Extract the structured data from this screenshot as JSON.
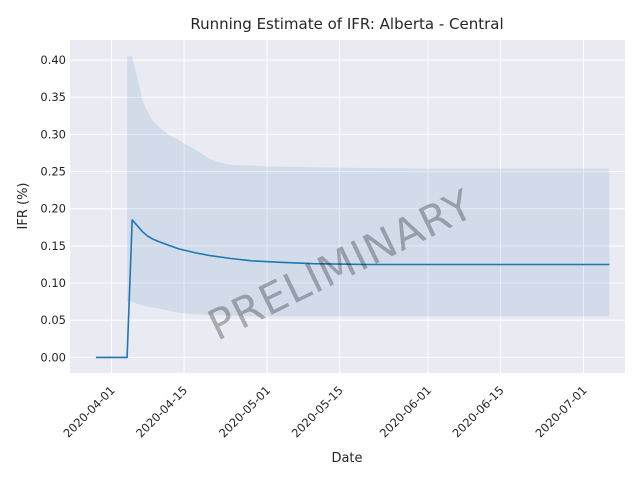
{
  "chart_data": {
    "type": "line",
    "title": "Running Estimate of IFR: Alberta - Central",
    "xlabel": "Date",
    "ylabel": "IFR (%)",
    "x_range": [
      "2020-03-24",
      "2020-07-09"
    ],
    "ylim": [
      -0.021,
      0.427
    ],
    "x_ticks": [
      "2020-04-01",
      "2020-04-15",
      "2020-05-01",
      "2020-05-15",
      "2020-06-01",
      "2020-06-15",
      "2020-07-01"
    ],
    "y_ticks": [
      0.0,
      0.05,
      0.1,
      0.15,
      0.2,
      0.25,
      0.3,
      0.35,
      0.4
    ],
    "y_tick_labels": [
      "0.00",
      "0.05",
      "0.10",
      "0.15",
      "0.20",
      "0.25",
      "0.30",
      "0.35",
      "0.40"
    ],
    "grid": true,
    "background": "#eaeaf2",
    "line_color": "#1f77b4",
    "band_color": "#1f77b4",
    "watermark": "PRELIMINARY",
    "series": [
      {
        "x": [
          "2020-03-29",
          "2020-03-30",
          "2020-03-31",
          "2020-04-01",
          "2020-04-02",
          "2020-04-03",
          "2020-04-04",
          "2020-04-05",
          "2020-04-06",
          "2020-04-07",
          "2020-04-08",
          "2020-04-09",
          "2020-04-10",
          "2020-04-12",
          "2020-04-14",
          "2020-04-17",
          "2020-04-20",
          "2020-04-24",
          "2020-04-28",
          "2020-05-03",
          "2020-05-10",
          "2020-05-20",
          "2020-06-01",
          "2020-06-15",
          "2020-07-01",
          "2020-07-06"
        ],
        "values": [
          0.0,
          0.0,
          0.0,
          0.0,
          0.0,
          0.0,
          0.0,
          0.185,
          0.177,
          0.169,
          0.163,
          0.159,
          0.156,
          0.151,
          0.146,
          0.141,
          0.137,
          0.133,
          0.13,
          0.128,
          0.126,
          0.125,
          0.125,
          0.125,
          0.125,
          0.125
        ]
      },
      {
        "x": [
          "2020-04-04",
          "2020-04-05",
          "2020-04-06",
          "2020-04-07",
          "2020-04-08",
          "2020-04-09",
          "2020-04-10",
          "2020-04-12",
          "2020-04-14",
          "2020-04-17",
          "2020-04-20",
          "2020-04-22",
          "2020-04-24",
          "2020-05-01",
          "2020-05-15",
          "2020-06-01",
          "2020-06-15",
          "2020-07-01",
          "2020-07-06"
        ],
        "lower": [
          0.075,
          0.075,
          0.072,
          0.07,
          0.068,
          0.067,
          0.066,
          0.063,
          0.06,
          0.058,
          0.057,
          0.057,
          0.056,
          0.055,
          0.055,
          0.055,
          0.055,
          0.055,
          0.055
        ],
        "upper": [
          0.405,
          0.405,
          0.375,
          0.345,
          0.33,
          0.318,
          0.311,
          0.299,
          0.292,
          0.28,
          0.267,
          0.262,
          0.259,
          0.257,
          0.255,
          0.254,
          0.254,
          0.254,
          0.254
        ]
      }
    ]
  }
}
